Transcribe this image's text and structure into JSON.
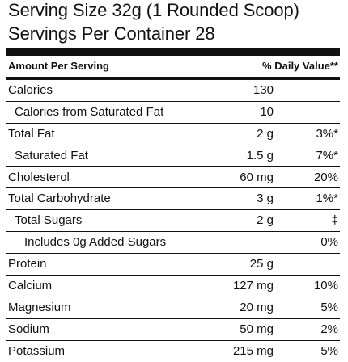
{
  "serving": {
    "size_line": "Serving Size 32g (1 Rounded Scoop)",
    "servings_line": "Servings Per Container  28"
  },
  "header": {
    "amount_per_serving": "Amount Per Serving",
    "daily_value": "% Daily Value**"
  },
  "rows": [
    {
      "label": "Calories",
      "amount": "130",
      "dv": ""
    },
    {
      "label": "Calories from Saturated Fat",
      "amount": "10",
      "dv": ""
    },
    {
      "label": "Total Fat",
      "amount": "2 g",
      "dv": "3%*"
    },
    {
      "label": "Saturated Fat",
      "amount": "1.5 g",
      "dv": "7%*"
    },
    {
      "label": "Cholesterol",
      "amount": "60 mg",
      "dv": "20%"
    },
    {
      "label": "Total Carbohydrate",
      "amount": "3 g",
      "dv": "1%*"
    },
    {
      "label": "Total Sugars",
      "amount": "2 g",
      "dv": "‡"
    },
    {
      "label": "Includes 0g Added Sugars",
      "amount": "",
      "dv": "0%"
    },
    {
      "label": "Protein",
      "amount": "25 g",
      "dv": ""
    },
    {
      "label": "Calcium",
      "amount": "127 mg",
      "dv": "10%"
    },
    {
      "label": "Magnesium",
      "amount": "20 mg",
      "dv": "5%"
    },
    {
      "label": "Sodium",
      "amount": "50 mg",
      "dv": "2%"
    },
    {
      "label": "Potassium",
      "amount": "215 mg",
      "dv": "5%"
    }
  ]
}
